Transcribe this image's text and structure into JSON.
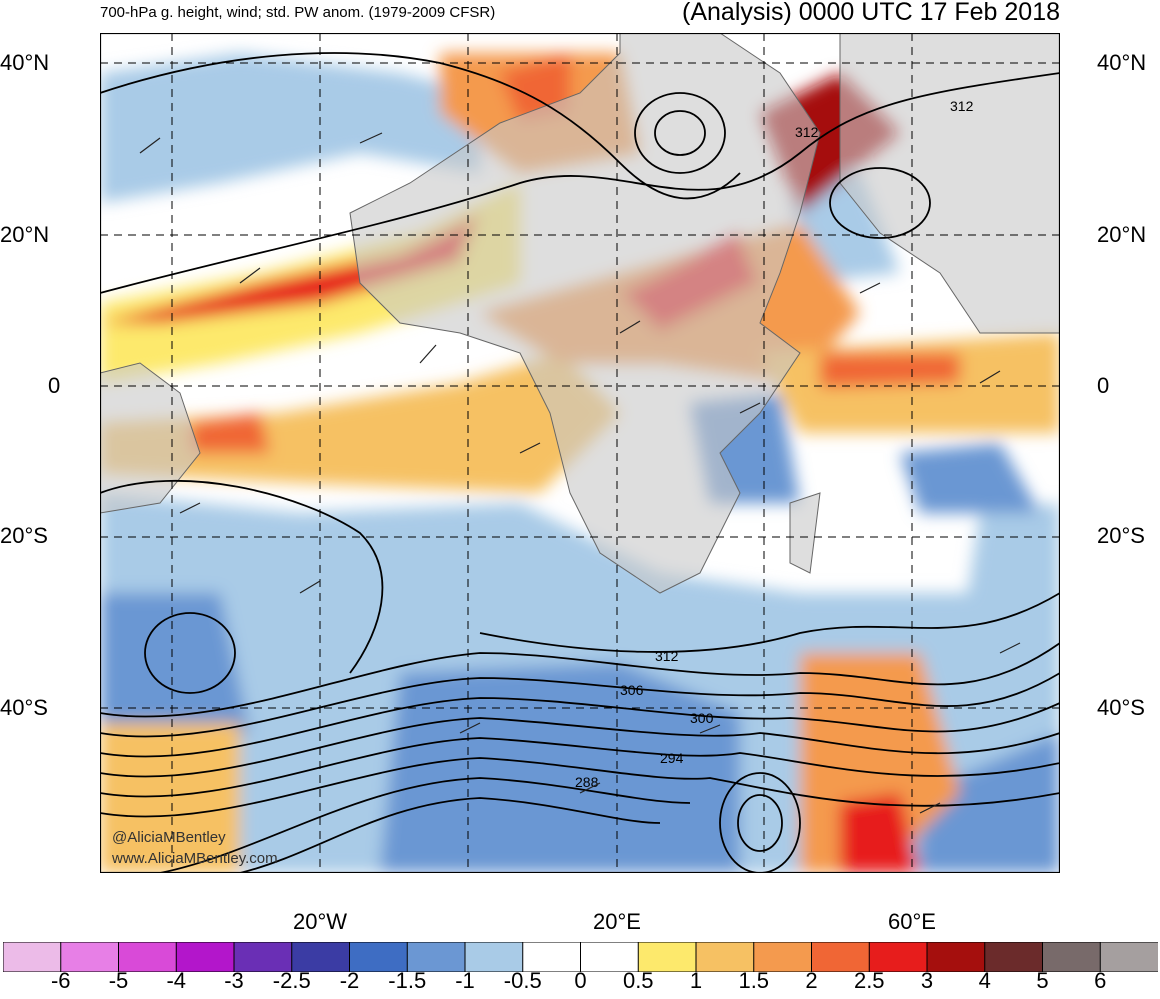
{
  "header": {
    "left_title": "700-hPa g. height, wind; std. PW anom. (1979-2009 CFSR)",
    "right_title": "(Analysis) 0000 UTC 17 Feb 2018"
  },
  "map": {
    "lat_labels": [
      "40°N",
      "20°N",
      "0",
      "20°S",
      "40°S"
    ],
    "lon_labels": [
      "20°W",
      "20°E",
      "60°E"
    ],
    "contour_labels": [
      "312",
      "306",
      "300",
      "294",
      "288",
      "312",
      "312"
    ],
    "watermark": [
      "@AliciaMBentley",
      "www.AliciaMBentley.com"
    ],
    "land_color": "#c8c8c8",
    "grid_style": "dashed"
  },
  "colorbar": {
    "colors": [
      "#ecbbe8",
      "#e77fe6",
      "#d94ad8",
      "#b316cb",
      "#6a2fb5",
      "#3b3ca4",
      "#3e6dc3",
      "#6b97d3",
      "#a9cbe7",
      "#ffffff",
      "#ffffff",
      "#fde96c",
      "#f6c163",
      "#f49a4e",
      "#f06635",
      "#e71d1c",
      "#a50f0d",
      "#6b2b2b",
      "#786a6a",
      "#a59f9f"
    ],
    "labels": [
      "-6",
      "-5",
      "-4",
      "-3",
      "-2.5",
      "-2",
      "-1.5",
      "-1",
      "-0.5",
      "0",
      "0.5",
      "1",
      "1.5",
      "2",
      "2.5",
      "3",
      "4",
      "5",
      "6"
    ]
  }
}
